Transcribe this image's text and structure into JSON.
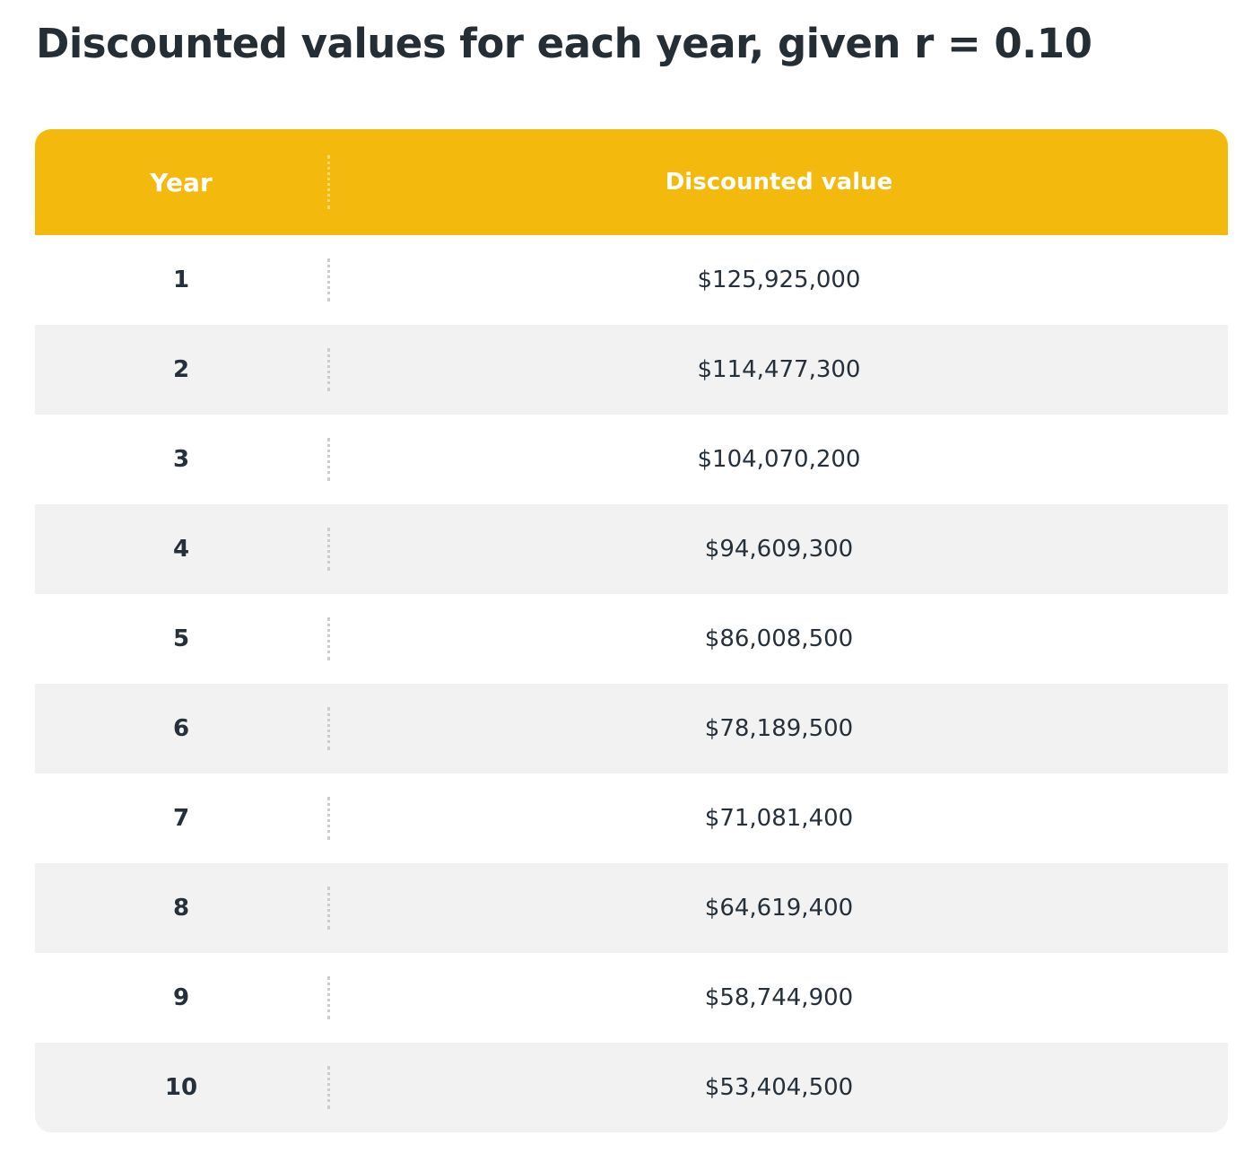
{
  "title": "Discounted values for each year, given r = 0.10",
  "table": {
    "header": [
      "Year",
      "Discounted value"
    ],
    "rows": [
      [
        "1",
        "$125,925,000"
      ],
      [
        "2",
        "$114,477,300"
      ],
      [
        "3",
        "$104,070,200"
      ],
      [
        "4",
        "$94,609,300"
      ],
      [
        "5",
        "$86,008,500"
      ],
      [
        "6",
        "$78,189,500"
      ],
      [
        "7",
        "$71,081,400"
      ],
      [
        "8",
        "$64,619,400"
      ],
      [
        "9",
        "$58,744,900"
      ],
      [
        "10",
        "$53,404,500"
      ]
    ]
  }
}
